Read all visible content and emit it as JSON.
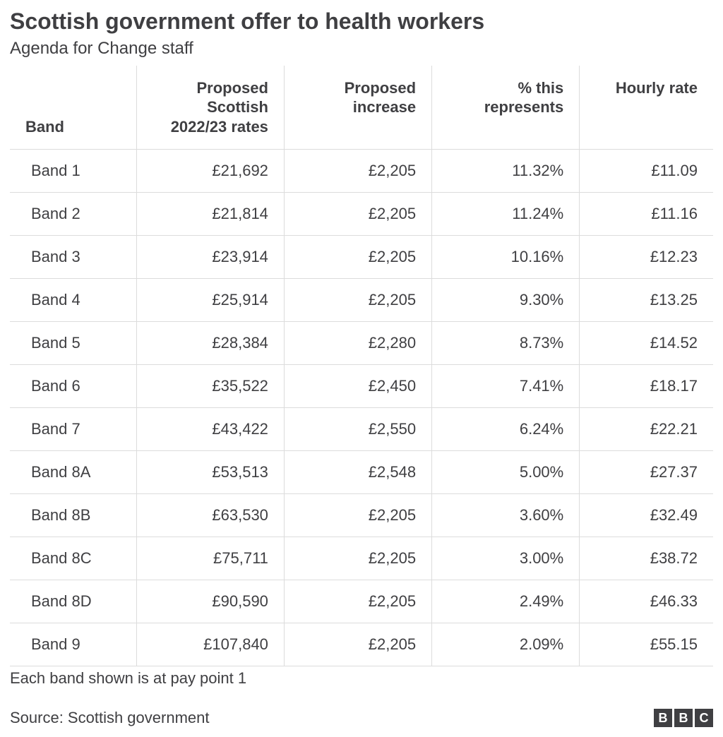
{
  "header": {
    "title": "Scottish government offer to health workers",
    "subtitle": "Agenda for Change staff"
  },
  "table": {
    "type": "table",
    "columns": [
      {
        "label": "Band",
        "align": "left",
        "width": "18%"
      },
      {
        "label": "Proposed Scottish 2022/23 rates",
        "align": "right",
        "width": "21%"
      },
      {
        "label": "Proposed increase",
        "align": "right",
        "width": "21%"
      },
      {
        "label": "% this represents",
        "align": "right",
        "width": "21%"
      },
      {
        "label": "Hourly rate",
        "align": "right",
        "width": "19%"
      }
    ],
    "rows": [
      [
        "Band 1",
        "£21,692",
        "£2,205",
        "11.32%",
        "£11.09"
      ],
      [
        "Band 2",
        "£21,814",
        "£2,205",
        "11.24%",
        "£11.16"
      ],
      [
        "Band 3",
        "£23,914",
        "£2,205",
        "10.16%",
        "£12.23"
      ],
      [
        "Band 4",
        "£25,914",
        "£2,205",
        "9.30%",
        "£13.25"
      ],
      [
        "Band 5",
        "£28,384",
        "£2,280",
        "8.73%",
        "£14.52"
      ],
      [
        "Band 6",
        "£35,522",
        "£2,450",
        "7.41%",
        "£18.17"
      ],
      [
        "Band 7",
        "£43,422",
        "£2,550",
        "6.24%",
        "£22.21"
      ],
      [
        "Band 8A",
        "£53,513",
        "£2,548",
        "5.00%",
        "£27.37"
      ],
      [
        "Band 8B",
        "£63,530",
        "£2,205",
        "3.60%",
        "£32.49"
      ],
      [
        "Band 8C",
        "£75,711",
        "£2,205",
        "3.00%",
        "£38.72"
      ],
      [
        "Band 8D",
        "£90,590",
        "£2,205",
        "2.49%",
        "£46.33"
      ],
      [
        "Band 9",
        "£107,840",
        "£2,205",
        "2.09%",
        "£55.15"
      ]
    ],
    "header_fontsize": 22,
    "header_fontweight": 700,
    "body_fontsize": 22,
    "body_fontweight": 400,
    "border_color": "#dcdcdc",
    "text_color": "#3f3f42",
    "background_color": "#ffffff"
  },
  "footnote": "Each band shown is at pay point 1",
  "source": "Source: Scottish government",
  "logo": {
    "letters": [
      "B",
      "B",
      "C"
    ],
    "box_bg": "#3f3f42",
    "box_fg": "#ffffff"
  }
}
